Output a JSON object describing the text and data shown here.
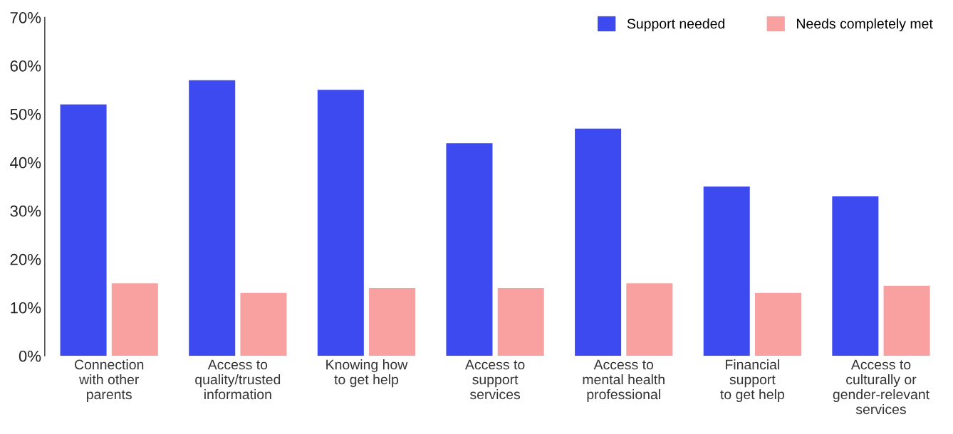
{
  "chart_data": {
    "type": "bar",
    "categories": [
      "Connection\nwith other\nparents",
      "Access to\nquality/trusted\ninformation",
      "Knowing how\nto get help",
      "Access to\nsupport\nservices",
      "Access to\nmental health\nprofessional",
      "Financial\nsupport\nto get help",
      "Access to\nculturally or\ngender-relevant\nservices"
    ],
    "series": [
      {
        "name": "Support needed",
        "color": "#3d4af0",
        "values": [
          52,
          57,
          55,
          44,
          47,
          35,
          33
        ]
      },
      {
        "name": "Needs completely met",
        "color": "#f9a0a0",
        "values": [
          15,
          13,
          14,
          14,
          15,
          13,
          14.5
        ]
      }
    ],
    "ylim": [
      0,
      70
    ],
    "yticks": [
      {
        "value": 0,
        "label": "0%"
      },
      {
        "value": 10,
        "label": "10%"
      },
      {
        "value": 20,
        "label": "20%"
      },
      {
        "value": 30,
        "label": "30%"
      },
      {
        "value": 40,
        "label": "40%"
      },
      {
        "value": 50,
        "label": "50%"
      },
      {
        "value": 60,
        "label": "60%"
      },
      {
        "value": 70,
        "label": "70%"
      }
    ],
    "grid": false,
    "legend": "top right"
  }
}
